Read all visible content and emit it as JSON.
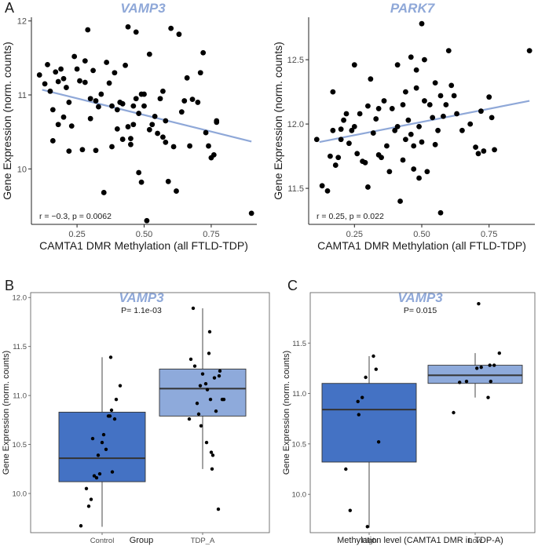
{
  "chart_data": [
    {
      "id": "A1",
      "type": "scatter",
      "panel_label": "A",
      "title": "VAMP3",
      "xlabel": "CAMTA1 DMR Methylation (all FTLD-TDP)",
      "ylabel": "Gene Expression (norm. counts)",
      "xlim": [
        0.08,
        0.92
      ],
      "ylim": [
        9.25,
        12.05
      ],
      "xticks": [
        0.25,
        0.5,
        0.75
      ],
      "xtick_labels": [
        "0.25",
        "0.50",
        "0.75"
      ],
      "yticks": [
        10,
        11,
        12
      ],
      "ytick_labels": [
        "10",
        "11",
        "12"
      ],
      "annotation": "r = −0.3, p = 0.0062",
      "fit": {
        "x": [
          0.12,
          0.9
        ],
        "y": [
          11.07,
          10.37
        ]
      },
      "x": [
        0.11,
        0.13,
        0.14,
        0.15,
        0.16,
        0.16,
        0.17,
        0.18,
        0.18,
        0.19,
        0.2,
        0.2,
        0.21,
        0.22,
        0.22,
        0.23,
        0.24,
        0.25,
        0.26,
        0.27,
        0.28,
        0.28,
        0.29,
        0.3,
        0.3,
        0.31,
        0.32,
        0.32,
        0.33,
        0.34,
        0.35,
        0.36,
        0.37,
        0.38,
        0.38,
        0.39,
        0.4,
        0.4,
        0.41,
        0.42,
        0.42,
        0.43,
        0.44,
        0.44,
        0.45,
        0.45,
        0.46,
        0.46,
        0.47,
        0.47,
        0.48,
        0.48,
        0.49,
        0.49,
        0.5,
        0.5,
        0.51,
        0.52,
        0.52,
        0.53,
        0.54,
        0.55,
        0.56,
        0.57,
        0.57,
        0.58,
        0.58,
        0.59,
        0.6,
        0.61,
        0.62,
        0.63,
        0.64,
        0.65,
        0.66,
        0.67,
        0.68,
        0.7,
        0.71,
        0.72,
        0.73,
        0.74,
        0.75,
        0.76,
        0.77,
        0.77,
        0.9
      ],
      "y": [
        11.27,
        11.15,
        11.41,
        11.05,
        10.8,
        10.38,
        11.31,
        10.6,
        11.18,
        11.35,
        11.22,
        10.7,
        11.1,
        10.9,
        10.24,
        10.58,
        11.52,
        11.35,
        11.19,
        10.26,
        11.46,
        11.17,
        11.88,
        10.95,
        10.68,
        11.33,
        10.92,
        10.25,
        10.84,
        11.01,
        9.68,
        11.44,
        11.16,
        10.85,
        10.3,
        11.3,
        10.8,
        10.54,
        10.9,
        10.88,
        10.4,
        11.4,
        11.92,
        10.57,
        10.33,
        10.41,
        10.6,
        10.85,
        11.85,
        10.95,
        9.95,
        10.75,
        11.01,
        9.82,
        11.01,
        10.85,
        9.3,
        10.53,
        11.55,
        10.6,
        10.71,
        10.48,
        10.95,
        11.05,
        10.43,
        10.36,
        10.65,
        9.83,
        11.9,
        10.3,
        9.7,
        11.82,
        10.77,
        10.92,
        11.23,
        10.31,
        10.94,
        10.9,
        11.3,
        11.57,
        10.49,
        10.31,
        10.15,
        10.19,
        10.65,
        10.63,
        9.4
      ]
    },
    {
      "id": "A2",
      "type": "scatter",
      "title": "PARK7",
      "xlabel": "CAMTA1 DMR Methylation (all FTLD-TDP)",
      "ylabel": "Gene Expression (norm. counts)",
      "xlim": [
        0.08,
        0.92
      ],
      "ylim": [
        11.22,
        12.83
      ],
      "xticks": [
        0.25,
        0.5,
        0.75
      ],
      "xtick_labels": [
        "0.25",
        "0.50",
        "0.75"
      ],
      "yticks": [
        11.5,
        12.0,
        12.5
      ],
      "ytick_labels": [
        "11.5",
        "12.0",
        "12.5"
      ],
      "annotation": "r = 0.25, p = 0.022",
      "fit": {
        "x": [
          0.12,
          0.9
        ],
        "y": [
          11.86,
          12.18
        ]
      },
      "x": [
        0.11,
        0.13,
        0.15,
        0.16,
        0.17,
        0.17,
        0.18,
        0.19,
        0.2,
        0.2,
        0.21,
        0.22,
        0.23,
        0.24,
        0.25,
        0.25,
        0.26,
        0.27,
        0.28,
        0.29,
        0.3,
        0.3,
        0.31,
        0.32,
        0.33,
        0.34,
        0.34,
        0.35,
        0.36,
        0.37,
        0.38,
        0.39,
        0.4,
        0.41,
        0.41,
        0.42,
        0.43,
        0.43,
        0.44,
        0.44,
        0.45,
        0.46,
        0.46,
        0.47,
        0.47,
        0.48,
        0.48,
        0.49,
        0.49,
        0.5,
        0.5,
        0.51,
        0.51,
        0.52,
        0.53,
        0.54,
        0.55,
        0.55,
        0.56,
        0.57,
        0.57,
        0.58,
        0.59,
        0.6,
        0.61,
        0.62,
        0.63,
        0.65,
        0.68,
        0.7,
        0.71,
        0.72,
        0.73,
        0.75,
        0.76,
        0.77,
        0.9
      ],
      "y": [
        11.88,
        11.52,
        11.48,
        11.75,
        12.25,
        11.95,
        11.68,
        11.74,
        11.88,
        11.96,
        12.03,
        12.08,
        11.85,
        11.95,
        11.98,
        12.46,
        11.77,
        12.08,
        11.71,
        11.7,
        12.14,
        11.51,
        12.35,
        11.93,
        12.04,
        11.76,
        12.12,
        11.74,
        12.18,
        11.83,
        11.63,
        12.12,
        11.95,
        11.98,
        12.46,
        11.4,
        12.15,
        11.72,
        12.25,
        11.88,
        12.03,
        11.92,
        12.52,
        11.83,
        11.65,
        12.42,
        12.28,
        11.98,
        11.58,
        11.86,
        12.78,
        12.18,
        12.5,
        11.63,
        12.15,
        12.05,
        11.84,
        12.32,
        11.95,
        12.22,
        11.31,
        12.06,
        12.15,
        12.57,
        12.3,
        12.22,
        12.08,
        11.95,
        12.0,
        11.82,
        11.77,
        12.1,
        11.79,
        12.21,
        12.05,
        11.8,
        12.57
      ]
    },
    {
      "id": "B",
      "type": "box",
      "panel_label": "B",
      "title": "VAMP3",
      "annotation": "P= 1.1e-03",
      "xlabel": "Group",
      "ylabel": "Gene Expression (norm. counts)",
      "categories": [
        "Control",
        "TDP_A"
      ],
      "ylim": [
        9.6,
        12.05
      ],
      "yticks": [
        10.0,
        10.5,
        11.0,
        11.5,
        12.0
      ],
      "ytick_labels": [
        "10.0",
        "10.5",
        "11.0",
        "11.5",
        "12.0"
      ],
      "colors": [
        "#4472c4",
        "#8eaadb"
      ],
      "boxes": [
        {
          "q1": 10.12,
          "median": 10.36,
          "q3": 10.83,
          "whisker_low": 9.66,
          "whisker_high": 11.39
        },
        {
          "q1": 10.79,
          "median": 11.07,
          "q3": 11.27,
          "whisker_low": 10.25,
          "whisker_high": 11.89
        }
      ],
      "points": [
        {
          "group": 0,
          "jitter": [
            -0.27,
            -0.17,
            -0.14,
            -0.2,
            -0.07,
            -0.1,
            -0.03,
            0.0,
            -0.12,
            0.02,
            0.05,
            0.1,
            0.08,
            0.12,
            0.16,
            0.18,
            0.23,
            0.11,
            -0.05,
            0.13
          ],
          "y": [
            9.67,
            9.87,
            9.94,
            10.05,
            10.16,
            10.18,
            10.2,
            10.52,
            10.56,
            10.6,
            10.45,
            10.79,
            10.79,
            10.85,
            10.76,
            10.96,
            11.1,
            11.39,
            10.39,
            10.22
          ]
        },
        {
          "group": 1,
          "jitter": [
            -0.17,
            -0.15,
            -0.12,
            -0.07,
            -0.05,
            -0.1,
            -0.02,
            0.0,
            0.04,
            0.05,
            0.06,
            0.08,
            0.09,
            0.1,
            0.11,
            0.13,
            0.15,
            0.17,
            0.21,
            0.22,
            0.27,
            0.25,
            0.12,
            0.2,
            -0.03
          ],
          "y": [
            10.76,
            11.37,
            11.89,
            10.92,
            10.81,
            11.3,
            10.69,
            11.22,
            11.12,
            10.52,
            11.06,
            11.43,
            11.65,
            10.96,
            10.42,
            10.39,
            11.18,
            10.84,
            11.2,
            11.25,
            10.96,
            10.96,
            10.25,
            9.84,
            11.1
          ]
        }
      ]
    },
    {
      "id": "C",
      "type": "box",
      "panel_label": "C",
      "title": "VAMP3",
      "annotation": "P= 0.015",
      "xlabel": "Methylation level (CAMTA1 DMR in TDP-A)",
      "ylabel": "Gene Expression (norm. counts)",
      "categories": [
        "High",
        "Low"
      ],
      "ylim": [
        9.62,
        12.0
      ],
      "yticks": [
        10.0,
        10.5,
        11.0,
        11.5
      ],
      "ytick_labels": [
        "10.0",
        "10.5",
        "11.0",
        "11.5"
      ],
      "colors": [
        "#4472c4",
        "#8eaadb"
      ],
      "boxes": [
        {
          "q1": 10.32,
          "median": 10.84,
          "q3": 11.1,
          "whisker_low": 9.67,
          "whisker_high": 11.37
        },
        {
          "q1": 11.1,
          "median": 11.18,
          "q3": 11.28,
          "whisker_low": 10.96,
          "whisker_high": 11.4
        }
      ],
      "points": [
        {
          "group": 0,
          "jitter": [
            -0.27,
            -0.22,
            -0.12,
            -0.13,
            -0.08,
            -0.04,
            -0.02,
            0.05,
            0.08,
            0.11
          ],
          "y": [
            10.25,
            9.84,
            10.79,
            10.92,
            10.96,
            11.16,
            9.68,
            11.37,
            11.24,
            10.52
          ]
        },
        {
          "group": 1,
          "jitter": [
            -0.25,
            -0.18,
            -0.1,
            0.02,
            0.04,
            0.07,
            0.15,
            0.17,
            0.18,
            0.22,
            0.28
          ],
          "y": [
            10.81,
            11.11,
            11.12,
            11.25,
            11.89,
            11.26,
            10.96,
            11.28,
            11.12,
            11.28,
            11.4
          ]
        }
      ]
    }
  ]
}
